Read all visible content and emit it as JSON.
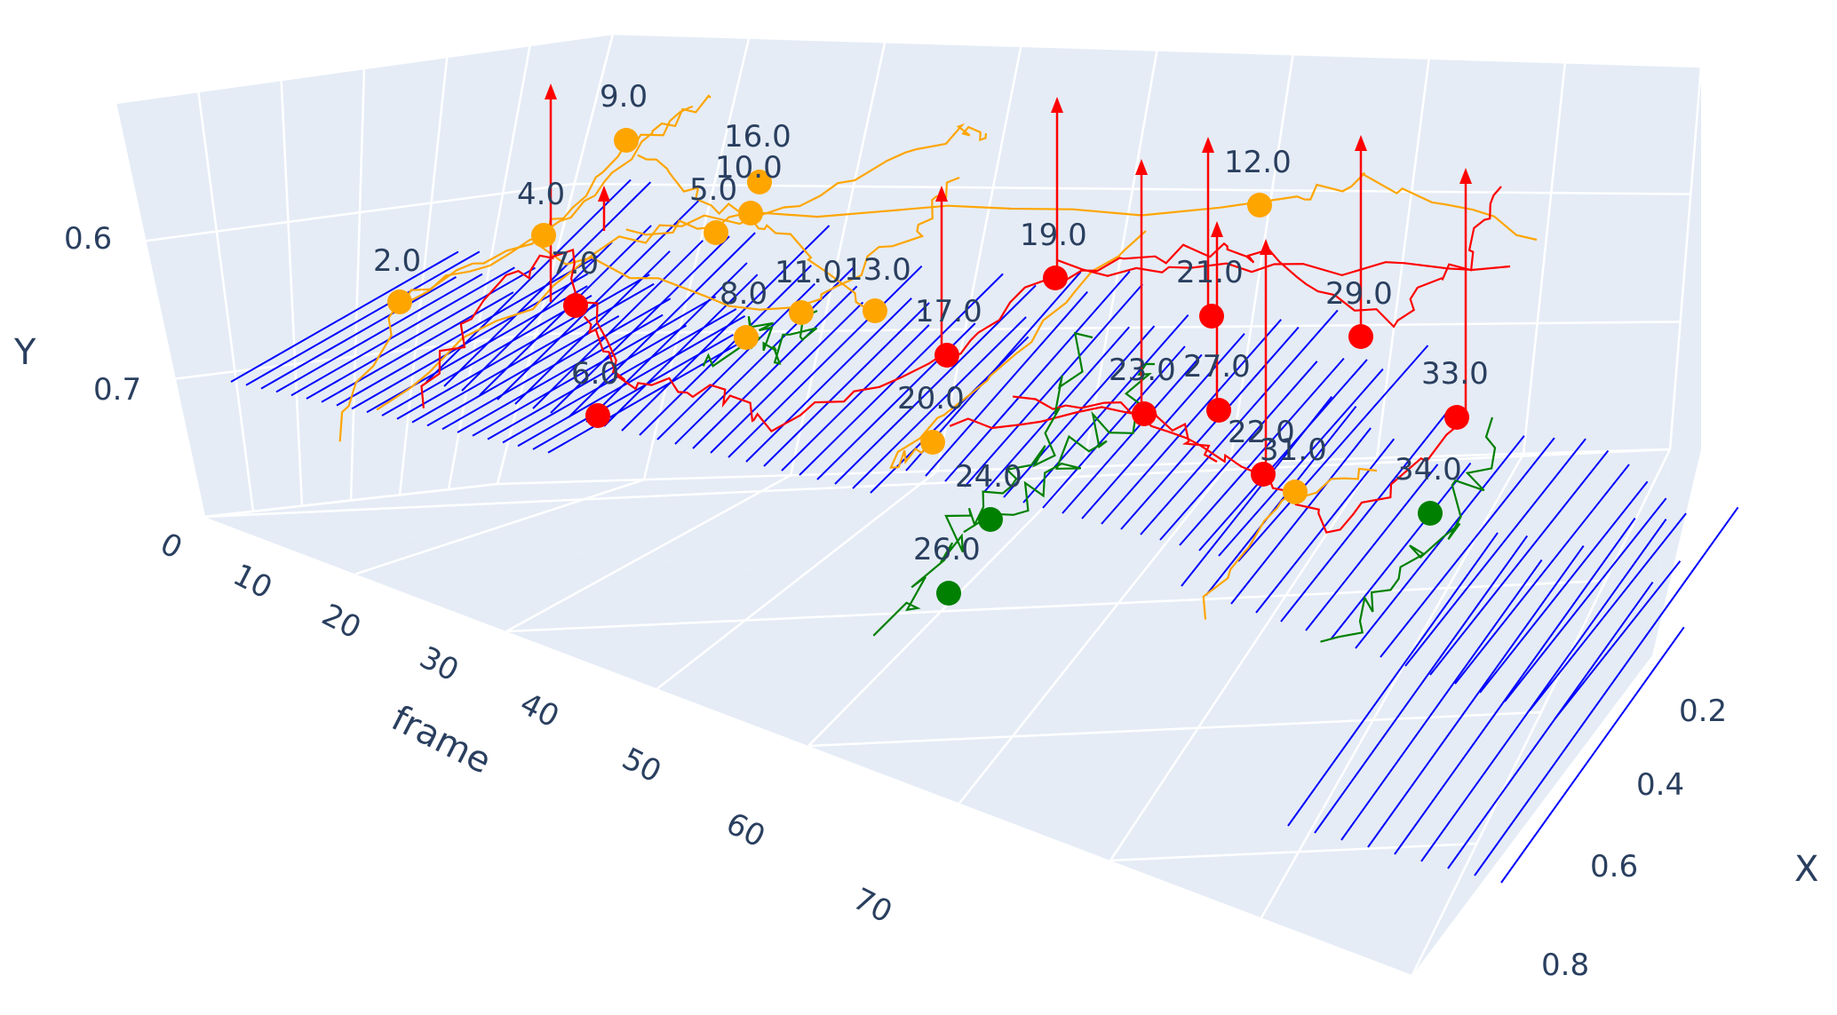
{
  "chart_data": {
    "type": "scatter3d",
    "title": "",
    "axes": {
      "frame": {
        "label": "frame",
        "ticks": [
          "0",
          "10",
          "20",
          "30",
          "40",
          "50",
          "60",
          "70"
        ]
      },
      "y": {
        "label": "Y",
        "ticks": [
          "0.6",
          "0.7"
        ]
      },
      "x": {
        "label": "X",
        "ticks": [
          "0.2",
          "0.4",
          "0.6",
          "0.8"
        ]
      }
    },
    "colors": {
      "background": "#e5ecf6",
      "grid": "#ffffff",
      "text": "#2a3f5f",
      "tracks": "#0000ff",
      "orange": "#ffa500",
      "red": "#ff0000",
      "green": "#008000"
    },
    "series": [
      {
        "name": "blue-tracks",
        "color": "#0000ff",
        "description": "static tracks"
      },
      {
        "name": "orange",
        "color": "#ffa500"
      },
      {
        "name": "red",
        "color": "#ff0000"
      },
      {
        "name": "green",
        "color": "#008000"
      }
    ],
    "points": [
      {
        "label": "2.0",
        "group": "orange",
        "frame": 2
      },
      {
        "label": "4.0",
        "group": "orange",
        "frame": 4
      },
      {
        "label": "9.0",
        "group": "orange",
        "frame": 9
      },
      {
        "label": "7.0",
        "group": "red",
        "frame": 7
      },
      {
        "label": "5.0",
        "group": "orange",
        "frame": 5
      },
      {
        "label": "16.0",
        "group": "orange",
        "frame": 16
      },
      {
        "label": "10.0",
        "group": "orange",
        "frame": 10
      },
      {
        "label": "6.0",
        "group": "red",
        "frame": 6
      },
      {
        "label": "8.0",
        "group": "orange",
        "frame": 8
      },
      {
        "label": "11.0",
        "group": "orange",
        "frame": 11
      },
      {
        "label": "13.0",
        "group": "orange",
        "frame": 13
      },
      {
        "label": "17.0",
        "group": "red",
        "frame": 17
      },
      {
        "label": "19.0",
        "group": "red",
        "frame": 19
      },
      {
        "label": "12.0",
        "group": "orange",
        "frame": 12
      },
      {
        "label": "21.0",
        "group": "red",
        "frame": 21
      },
      {
        "label": "20.0",
        "group": "orange",
        "frame": 20
      },
      {
        "label": "23.0",
        "group": "red",
        "frame": 23
      },
      {
        "label": "27.0",
        "group": "red",
        "frame": 27
      },
      {
        "label": "22.0",
        "group": "red",
        "frame": 22
      },
      {
        "label": "29.0",
        "group": "red",
        "frame": 29
      },
      {
        "label": "31.0",
        "group": "orange",
        "frame": 31
      },
      {
        "label": "33.0",
        "group": "red",
        "frame": 33
      },
      {
        "label": "34.0",
        "group": "green",
        "frame": 34
      },
      {
        "label": "24.0",
        "group": "green",
        "frame": 24
      },
      {
        "label": "26.0",
        "group": "green",
        "frame": 26
      }
    ]
  }
}
